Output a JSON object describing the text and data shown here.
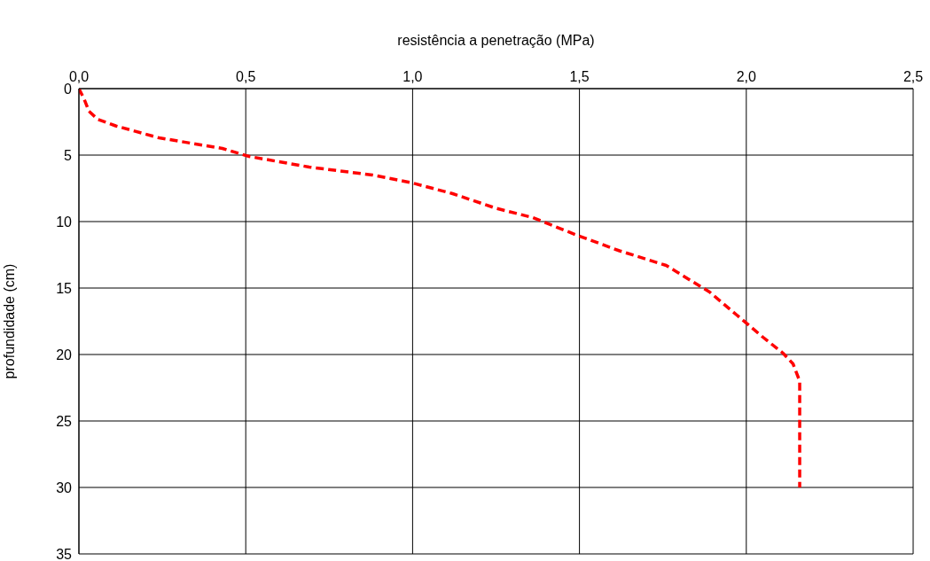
{
  "chart_data": {
    "type": "line",
    "xlabel": "resistência a penetração (MPa)",
    "ylabel": "profundidade (cm)",
    "x": [
      0,
      0.016,
      0.03,
      0.056,
      0.11,
      0.24,
      0.43,
      0.51,
      0.69,
      0.88,
      1.0,
      1.12,
      1.25,
      1.36,
      1.49,
      1.62,
      1.76,
      1.89,
      1.97,
      2.05,
      2.11,
      2.14,
      2.16,
      2.16,
      2.16
    ],
    "series": [
      {
        "color": "#ff0000",
        "line_style": "dashed",
        "values": [
          0,
          0.8,
          1.7,
          2.3,
          2.8,
          3.7,
          4.5,
          5.1,
          5.9,
          6.5,
          7.1,
          7.9,
          9.0,
          9.7,
          11.0,
          12.2,
          13.3,
          15.3,
          17.0,
          18.7,
          19.9,
          20.7,
          22.0,
          24.0,
          30.0
        ]
      }
    ],
    "xlim": [
      0,
      2.5
    ],
    "xticks": [
      {
        "value": 0,
        "label": "0,0"
      },
      {
        "value": 0.5,
        "label": "0,5"
      },
      {
        "value": 1,
        "label": "1,0"
      },
      {
        "value": 1.5,
        "label": "1,5"
      },
      {
        "value": 2,
        "label": "2,0"
      },
      {
        "value": 2.5,
        "label": "2,5"
      }
    ],
    "ylim": [
      35,
      0
    ],
    "yticks": [
      0,
      5,
      10,
      15,
      20,
      25,
      30,
      35
    ],
    "grid": true,
    "legend": false
  }
}
